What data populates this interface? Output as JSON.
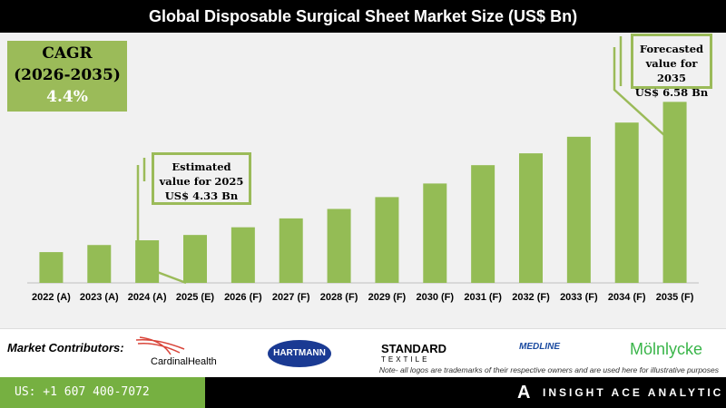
{
  "title": "Global Disposable Surgical Sheet Market Size (US$ Bn)",
  "cagr": {
    "label": "CAGR",
    "period": "(2026-2035)",
    "value": "4.4%"
  },
  "callouts": {
    "estimated": {
      "line1": "Estimated",
      "line2": "value for 2025",
      "line3": "US$ 4.33 Bn"
    },
    "forecast": {
      "line1": "Forecasted",
      "line2": "value for 2035",
      "line3": "US$ 6.58 Bn"
    }
  },
  "colors": {
    "bar": "#94bc55",
    "accent": "#9bbb59",
    "footer_green": "#76b041"
  },
  "chart_data": {
    "type": "bar",
    "title": "Global Disposable Surgical Sheet Market Size (US$ Bn)",
    "categories": [
      "2022 (A)",
      "2023 (A)",
      "2024 (A)",
      "2025 (E)",
      "2026 (F)",
      "2027 (F)",
      "2028 (F)",
      "2029 (F)",
      "2030 (F)",
      "2031 (F)",
      "2032 (F)",
      "2033 (F)",
      "2034 (F)",
      "2035 (F)"
    ],
    "values": [
      4.04,
      4.16,
      4.24,
      4.33,
      4.46,
      4.61,
      4.77,
      4.97,
      5.2,
      5.51,
      5.71,
      5.99,
      6.23,
      6.58
    ],
    "xlabel": "",
    "ylabel": "",
    "ylim": [
      3.52,
      6.8
    ],
    "grid": false
  },
  "contributors": {
    "label": "Market Contributors:",
    "logos": [
      "CardinalHealth",
      "HARTMANN",
      "STANDARD",
      "TEXTILE",
      "MEDLINE",
      "Mölnlycke"
    ],
    "note": "Note- all logos are trademarks of their respective owners and are used here for illustrative purposes"
  },
  "footer": {
    "phone": "US: +1 607 400-7072",
    "brand": "INSIGHT ACE ANALYTIC"
  }
}
